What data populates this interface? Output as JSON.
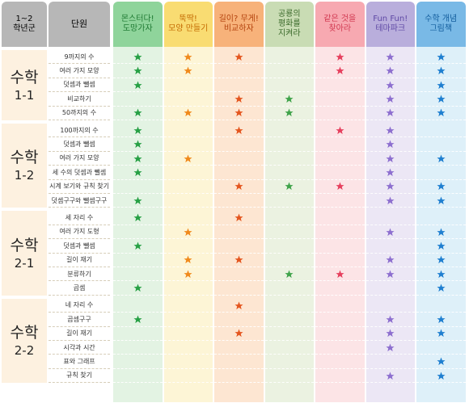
{
  "table": {
    "header": {
      "grade": [
        "1~2",
        "학년군"
      ],
      "unit": "단원",
      "products": [
        [
          "몬스터다!",
          "도망가자"
        ],
        [
          "뚝딱!",
          "모양 만들기"
        ],
        [
          "길이? 무게!",
          "비교하자"
        ],
        [
          "공룡의",
          "평화를",
          "지켜라"
        ],
        [
          "같은 것을",
          "찾아라"
        ],
        [
          "Fun Fun!",
          "테마파크"
        ],
        [
          "수학 개념",
          "그림책"
        ]
      ]
    },
    "groups": [
      {
        "subject": "수학",
        "term": "1-1",
        "rows": [
          {
            "unit": "9까지의 수",
            "marks": [
              true,
              true,
              true,
              false,
              true,
              true,
              true
            ]
          },
          {
            "unit": "여러 가지 모양",
            "marks": [
              true,
              true,
              false,
              false,
              true,
              true,
              true
            ]
          },
          {
            "unit": "덧셈과 뺄셈",
            "marks": [
              true,
              false,
              false,
              false,
              false,
              true,
              true
            ]
          },
          {
            "unit": "비교하기",
            "marks": [
              false,
              false,
              true,
              true,
              false,
              true,
              true
            ]
          },
          {
            "unit": "50까지의 수",
            "marks": [
              true,
              true,
              true,
              true,
              false,
              true,
              true
            ]
          }
        ]
      },
      {
        "subject": "수학",
        "term": "1-2",
        "rows": [
          {
            "unit": "100까지의 수",
            "marks": [
              true,
              false,
              true,
              false,
              true,
              true,
              false
            ]
          },
          {
            "unit": "덧셈과 뺄셈",
            "marks": [
              true,
              false,
              false,
              false,
              false,
              true,
              false
            ]
          },
          {
            "unit": "여러 가지 모양",
            "marks": [
              true,
              true,
              false,
              false,
              false,
              true,
              true
            ]
          },
          {
            "unit": "세 수의 덧셈과 뺄셈",
            "marks": [
              true,
              false,
              false,
              false,
              false,
              true,
              false
            ]
          },
          {
            "unit": "시계 보기와 규칙 찾기",
            "marks": [
              false,
              false,
              true,
              true,
              true,
              true,
              true
            ]
          },
          {
            "unit": "덧셈구구와 뺄셈구구",
            "marks": [
              true,
              false,
              false,
              false,
              false,
              true,
              true
            ]
          }
        ]
      },
      {
        "subject": "수학",
        "term": "2-1",
        "rows": [
          {
            "unit": "세 자리 수",
            "marks": [
              true,
              false,
              true,
              false,
              false,
              false,
              false
            ]
          },
          {
            "unit": "여러 가지 도형",
            "marks": [
              false,
              true,
              false,
              false,
              false,
              true,
              true
            ]
          },
          {
            "unit": "덧셈과 뺄셈",
            "marks": [
              true,
              false,
              false,
              false,
              false,
              false,
              true
            ]
          },
          {
            "unit": "길이 재기",
            "marks": [
              false,
              true,
              true,
              false,
              false,
              true,
              true
            ]
          },
          {
            "unit": "분류하기",
            "marks": [
              false,
              true,
              false,
              true,
              true,
              true,
              true
            ]
          },
          {
            "unit": "곱셈",
            "marks": [
              true,
              false,
              false,
              false,
              false,
              false,
              true
            ]
          }
        ]
      },
      {
        "subject": "수학",
        "term": "2-2",
        "rows": [
          {
            "unit": "네 자리 수",
            "marks": [
              false,
              false,
              true,
              false,
              false,
              false,
              false
            ]
          },
          {
            "unit": "곱셈구구",
            "marks": [
              true,
              false,
              false,
              false,
              false,
              true,
              true
            ]
          },
          {
            "unit": "길이 재기",
            "marks": [
              false,
              false,
              true,
              false,
              false,
              true,
              true
            ]
          },
          {
            "unit": "시각과 시간",
            "marks": [
              false,
              false,
              false,
              false,
              false,
              true,
              false
            ]
          },
          {
            "unit": "표와 그래프",
            "marks": [
              false,
              false,
              false,
              false,
              false,
              false,
              true
            ]
          },
          {
            "unit": "규칙 찾기",
            "marks": [
              false,
              false,
              false,
              false,
              false,
              true,
              true
            ]
          }
        ]
      }
    ]
  }
}
